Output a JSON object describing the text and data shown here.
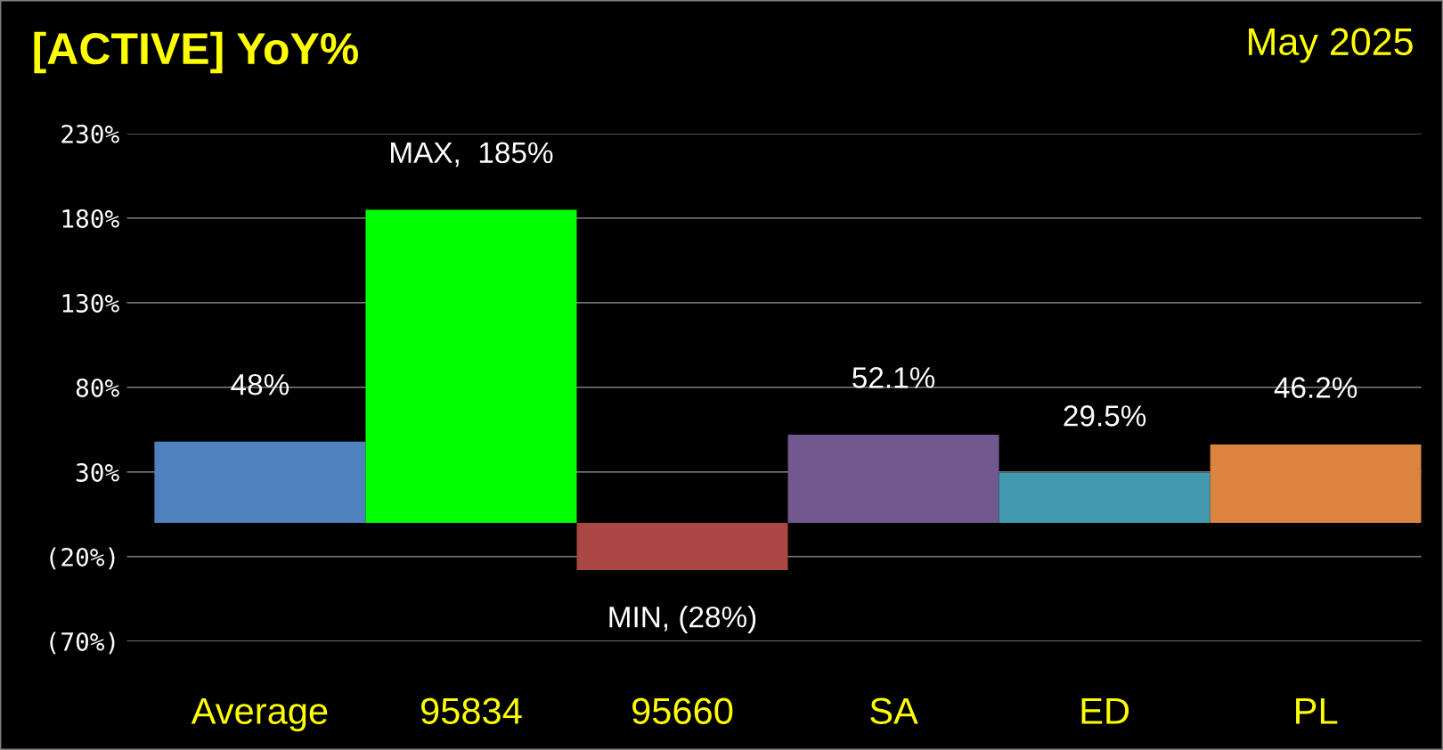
{
  "chart_data": {
    "type": "bar",
    "title": "[ACTIVE] YoY%",
    "subtitle": "May 2025",
    "categories": [
      "Average",
      "95834",
      "95660",
      "SA",
      "ED",
      "PL"
    ],
    "values": [
      48,
      185,
      -28,
      52.1,
      29.5,
      46.2
    ],
    "colors": [
      "#4f81bd",
      "#00ff00",
      "#aa4644",
      "#71588f",
      "#4198af",
      "#db843d"
    ],
    "value_labels": [
      "48%",
      "MAX,  185%",
      "MIN, (28%)",
      "52.1%",
      "29.5%",
      "46.2%"
    ],
    "ylim": [
      -70,
      230
    ],
    "yticks": [
      {
        "value": -70,
        "label": "(70%)"
      },
      {
        "value": -20,
        "label": "(20%)"
      },
      {
        "value": 30,
        "label": "30%"
      },
      {
        "value": 80,
        "label": "80%"
      },
      {
        "value": 130,
        "label": "130%"
      },
      {
        "value": 180,
        "label": "180%"
      },
      {
        "value": 230,
        "label": "230%"
      }
    ],
    "grid": "y",
    "legend": false
  }
}
